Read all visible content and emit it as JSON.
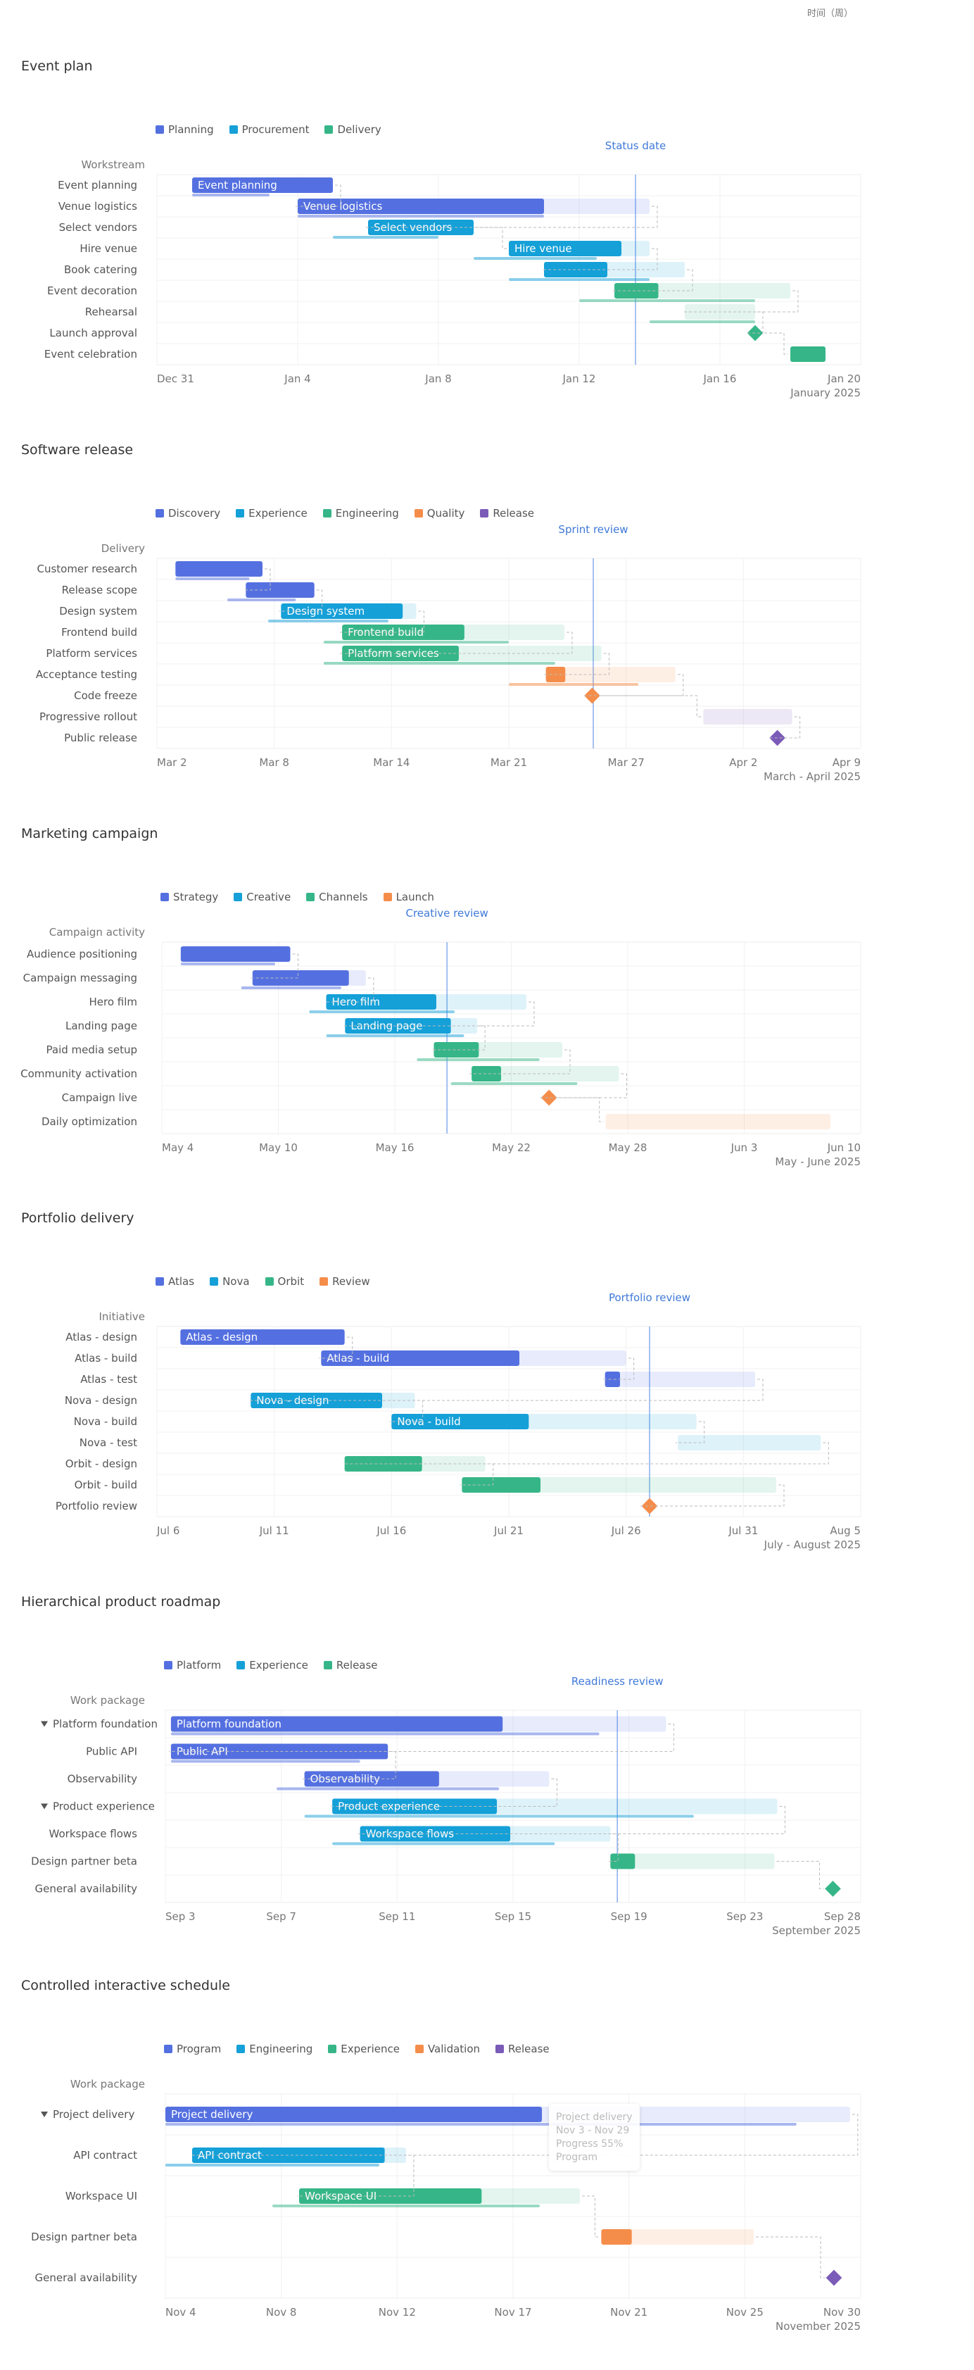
{
  "top_strip": {
    "year_label": "时间（周）"
  },
  "charts": [
    {
      "title": "Event plan",
      "header": "Workstream",
      "marker_label": "Status date",
      "year_label": "January 2025",
      "legend": [
        {
          "name": "Planning",
          "color": "#5470e0"
        },
        {
          "name": "Procurement",
          "color": "#15a0d8"
        },
        {
          "name": "Delivery",
          "color": "#36b688"
        }
      ]
    },
    {
      "title": "Software release",
      "header": "Delivery",
      "marker_label": "Sprint review",
      "year_label": "March - April 2025",
      "legend": [
        {
          "name": "Discovery",
          "color": "#5470e0"
        },
        {
          "name": "Experience",
          "color": "#15a0d8"
        },
        {
          "name": "Engineering",
          "color": "#36b688"
        },
        {
          "name": "Quality",
          "color": "#f58d4a"
        },
        {
          "name": "Release",
          "color": "#7b5bb8"
        }
      ]
    },
    {
      "title": "Marketing campaign",
      "header": "Campaign activity",
      "marker_label": "Creative review",
      "year_label": "May - June 2025",
      "legend": [
        {
          "name": "Strategy",
          "color": "#5470e0"
        },
        {
          "name": "Creative",
          "color": "#15a0d8"
        },
        {
          "name": "Channels",
          "color": "#36b688"
        },
        {
          "name": "Launch",
          "color": "#f58d4a"
        }
      ]
    },
    {
      "title": "Portfolio delivery",
      "header": "Initiative",
      "marker_label": "Portfolio review",
      "year_label": "July - August 2025",
      "legend": [
        {
          "name": "Atlas",
          "color": "#5470e0"
        },
        {
          "name": "Nova",
          "color": "#15a0d8"
        },
        {
          "name": "Orbit",
          "color": "#36b688"
        },
        {
          "name": "Review",
          "color": "#f58d4a"
        }
      ]
    },
    {
      "title": "Hierarchical product roadmap",
      "header": "Work package",
      "marker_label": "Readiness review",
      "year_label": "September 2025",
      "legend": [
        {
          "name": "Platform",
          "color": "#5470e0"
        },
        {
          "name": "Experience",
          "color": "#15a0d8"
        },
        {
          "name": "Release",
          "color": "#36b688"
        }
      ]
    },
    {
      "title": "Controlled interactive schedule",
      "header": "Work package",
      "year_label": "November 2025",
      "legend": [
        {
          "name": "Program",
          "color": "#5470e0"
        },
        {
          "name": "Engineering",
          "color": "#15a0d8"
        },
        {
          "name": "Experience",
          "color": "#36b688"
        },
        {
          "name": "Validation",
          "color": "#f58d4a"
        },
        {
          "name": "Release",
          "color": "#7b5bb8"
        }
      ],
      "tooltip": {
        "name": "Project delivery",
        "dates": "Nov 3 - Nov 29",
        "progress": "Progress  55%",
        "group": "Program"
      }
    }
  ],
  "chart_data": [
    {
      "type": "gantt",
      "title": "Event plan",
      "start": "Dec 31",
      "end": "Jan 20",
      "ticks": [
        "Dec 31",
        "Jan 4",
        "Jan 8",
        "Jan 12",
        "Jan 16",
        "Jan 20"
      ],
      "marker": {
        "label": "Status date",
        "date": "Jan 13"
      },
      "tasks": [
        {
          "name": "Event planning",
          "group": "Planning",
          "start": 1,
          "end": 5,
          "progress": 1,
          "planned": [
            1,
            3.2
          ],
          "label": "Event planning"
        },
        {
          "name": "Venue logistics",
          "group": "Planning",
          "start": 4,
          "end": 14,
          "progress": 0.7,
          "planned": [
            4,
            11
          ],
          "label": "Venue logistics"
        },
        {
          "name": "Select vendors",
          "group": "Procurement",
          "start": 6,
          "end": 9,
          "progress": 1,
          "planned": [
            5,
            8
          ],
          "label": "Select vendors"
        },
        {
          "name": "Hire venue",
          "group": "Procurement",
          "start": 10,
          "end": 14,
          "progress": 0.8,
          "planned": [
            9,
            12.5
          ],
          "label": "Hire venue"
        },
        {
          "name": "Book catering",
          "group": "Procurement",
          "start": 11,
          "end": 15,
          "progress": 0.45,
          "planned": [
            10,
            14
          ]
        },
        {
          "name": "Event decoration",
          "group": "Delivery",
          "start": 13,
          "end": 18,
          "progress": 0.25,
          "planned": [
            12,
            17
          ]
        },
        {
          "name": "Rehearsal",
          "group": "Delivery",
          "start": 15,
          "end": 17,
          "progress": 0,
          "planned": [
            14,
            17
          ]
        },
        {
          "name": "Launch approval",
          "group": "Delivery",
          "milestone": 17
        },
        {
          "name": "Event celebration",
          "group": "Delivery",
          "start": 18,
          "end": 19,
          "progress": 1
        }
      ]
    },
    {
      "type": "gantt",
      "title": "Software release",
      "start": "Mar 2",
      "end": "Apr 9",
      "ticks": [
        "Mar 2",
        "Mar 8",
        "Mar 14",
        "Mar 21",
        "Mar 27",
        "Apr 2",
        "Apr 9"
      ],
      "marker": {
        "label": "Sprint review",
        "date": "Mar 20"
      },
      "tasks": [
        {
          "name": "Customer research",
          "group": "Discovery",
          "start": 1,
          "end": 5.7,
          "progress": 1,
          "planned": [
            1,
            5
          ]
        },
        {
          "name": "Release scope",
          "group": "Discovery",
          "start": 4.8,
          "end": 8.5,
          "progress": 1,
          "planned": [
            3.8,
            7.5
          ]
        },
        {
          "name": "Design system",
          "group": "Experience",
          "start": 6.7,
          "end": 14,
          "progress": 0.9,
          "planned": [
            6,
            12.5
          ],
          "label": "Design system"
        },
        {
          "name": "Frontend build",
          "group": "Engineering",
          "start": 10,
          "end": 22,
          "progress": 0.55,
          "planned": [
            9,
            19
          ],
          "label": "Frontend build"
        },
        {
          "name": "Platform services",
          "group": "Engineering",
          "start": 10,
          "end": 24,
          "progress": 0.45,
          "planned": [
            9,
            21.5
          ],
          "label": "Platform services"
        },
        {
          "name": "Acceptance testing",
          "group": "Quality",
          "start": 21,
          "end": 28,
          "progress": 0.15,
          "planned": [
            19,
            26
          ]
        },
        {
          "name": "Code freeze",
          "group": "Quality",
          "milestone": 23.5
        },
        {
          "name": "Progressive rollout",
          "group": "Release",
          "start": 29.5,
          "end": 34.3,
          "progress": 0
        },
        {
          "name": "Public release",
          "group": "Release",
          "milestone": 33.5
        }
      ]
    },
    {
      "type": "gantt",
      "title": "Marketing campaign",
      "start": "May 4",
      "end": "Jun 10",
      "ticks": [
        "May 4",
        "May 10",
        "May 16",
        "May 22",
        "May 28",
        "Jun 3",
        "Jun 10"
      ],
      "marker": {
        "label": "Creative review",
        "date": "May 18"
      },
      "tasks": [
        {
          "name": "Audience positioning",
          "group": "Strategy",
          "start": 1,
          "end": 6.8,
          "progress": 1,
          "planned": [
            1,
            6
          ]
        },
        {
          "name": "Campaign messaging",
          "group": "Strategy",
          "start": 4.8,
          "end": 10.8,
          "progress": 0.85,
          "planned": [
            4.2,
            9.5
          ]
        },
        {
          "name": "Hero film",
          "group": "Creative",
          "start": 8.7,
          "end": 19.3,
          "progress": 0.55,
          "planned": [
            7.8,
            15.5
          ],
          "label": "Hero film"
        },
        {
          "name": "Landing page",
          "group": "Creative",
          "start": 9.7,
          "end": 16.7,
          "progress": 0.8,
          "planned": [
            8.7,
            16
          ],
          "label": "Landing page"
        },
        {
          "name": "Paid media setup",
          "group": "Channels",
          "start": 14.4,
          "end": 21.2,
          "progress": 0.35,
          "planned": [
            13.5,
            20
          ]
        },
        {
          "name": "Community activation",
          "group": "Channels",
          "start": 16.4,
          "end": 24.2,
          "progress": 0.2,
          "planned": [
            15.3,
            22
          ]
        },
        {
          "name": "Campaign live",
          "group": "Launch",
          "milestone": 20.5
        },
        {
          "name": "Daily optimization",
          "group": "Launch",
          "start": 23.5,
          "end": 35.4,
          "progress": 0
        }
      ]
    },
    {
      "type": "gantt",
      "title": "Portfolio delivery",
      "start": "Jul 6",
      "end": "Aug 5",
      "ticks": [
        "Jul 6",
        "Jul 11",
        "Jul 16",
        "Jul 21",
        "Jul 26",
        "Jul 31",
        "Aug 5"
      ],
      "marker": {
        "label": "Portfolio review",
        "date": "Jul 27"
      },
      "tasks": [
        {
          "name": "Atlas - design",
          "group": "Atlas",
          "start": 1,
          "end": 8,
          "progress": 1,
          "label": "Atlas - design"
        },
        {
          "name": "Atlas - build",
          "group": "Atlas",
          "start": 7,
          "end": 20,
          "progress": 0.65,
          "label": "Atlas - build"
        },
        {
          "name": "Atlas - test",
          "group": "Atlas",
          "start": 19.1,
          "end": 25.5,
          "progress": 0.1
        },
        {
          "name": "Nova - design",
          "group": "Nova",
          "start": 4,
          "end": 11,
          "progress": 0.8,
          "label": "Nova - design"
        },
        {
          "name": "Nova - build",
          "group": "Nova",
          "start": 10,
          "end": 23,
          "progress": 0.45,
          "label": "Nova - build"
        },
        {
          "name": "Nova - test",
          "group": "Nova",
          "start": 22.2,
          "end": 28.3,
          "progress": 0
        },
        {
          "name": "Orbit - design",
          "group": "Orbit",
          "start": 8,
          "end": 14,
          "progress": 0.55
        },
        {
          "name": "Orbit - build",
          "group": "Orbit",
          "start": 13,
          "end": 26.4,
          "progress": 0.25
        },
        {
          "name": "Portfolio review",
          "group": "Review",
          "milestone": 21
        }
      ]
    },
    {
      "type": "gantt",
      "title": "Hierarchical product roadmap",
      "start": "Sep 3",
      "end": "Sep 28",
      "ticks": [
        "Sep 3",
        "Sep 7",
        "Sep 11",
        "Sep 15",
        "Sep 19",
        "Sep 23",
        "Sep 28"
      ],
      "marker": {
        "label": "Readiness review",
        "date": "Sep 18"
      },
      "tasks": [
        {
          "name": "Platform foundation",
          "group": "Platform",
          "parent": true,
          "start": 0.2,
          "end": 18,
          "progress": 0.67,
          "planned": [
            0.2,
            15.6
          ],
          "label": "Platform foundation"
        },
        {
          "name": "Public API",
          "group": "Platform",
          "start": 0.2,
          "end": 8,
          "progress": 1,
          "planned": [
            0.2,
            7
          ],
          "label": "Public API"
        },
        {
          "name": "Observability",
          "group": "Platform",
          "start": 5,
          "end": 13.8,
          "progress": 0.55,
          "planned": [
            4,
            12
          ],
          "label": "Observability"
        },
        {
          "name": "Product experience",
          "group": "Experience",
          "parent": true,
          "start": 6,
          "end": 22,
          "progress": 0.37,
          "planned": [
            5,
            19
          ],
          "label": "Product experience"
        },
        {
          "name": "Workspace flows",
          "group": "Experience",
          "start": 7,
          "end": 16,
          "progress": 0.6,
          "planned": [
            6,
            14
          ],
          "label": "Workspace flows"
        },
        {
          "name": "Design partner beta",
          "group": "Release",
          "start": 16,
          "end": 21.9,
          "progress": 0.15
        },
        {
          "name": "General availability",
          "group": "Release",
          "milestone": 24
        }
      ]
    },
    {
      "type": "gantt",
      "title": "Controlled interactive schedule",
      "start": "Nov 4",
      "end": "Nov 30",
      "ticks": [
        "Nov 4",
        "Nov 8",
        "Nov 12",
        "Nov 17",
        "Nov 21",
        "Nov 25",
        "Nov 30"
      ],
      "tasks": [
        {
          "name": "Project delivery",
          "group": "Program",
          "parent": true,
          "start": 0,
          "end": 25.6,
          "progress": 0.55,
          "planned": [
            0,
            23.6
          ],
          "label": "Project delivery"
        },
        {
          "name": "API contract",
          "group": "Engineering",
          "start": 1,
          "end": 9,
          "progress": 0.9,
          "planned": [
            0,
            8
          ],
          "label": "API contract"
        },
        {
          "name": "Workspace UI",
          "group": "Experience",
          "start": 5,
          "end": 15.5,
          "progress": 0.65,
          "planned": [
            4,
            14
          ],
          "label": "Workspace UI"
        },
        {
          "name": "Design partner beta",
          "group": "Validation",
          "start": 16.3,
          "end": 22,
          "progress": 0.2
        },
        {
          "name": "General availability",
          "group": "Release",
          "milestone": 25
        }
      ]
    }
  ]
}
